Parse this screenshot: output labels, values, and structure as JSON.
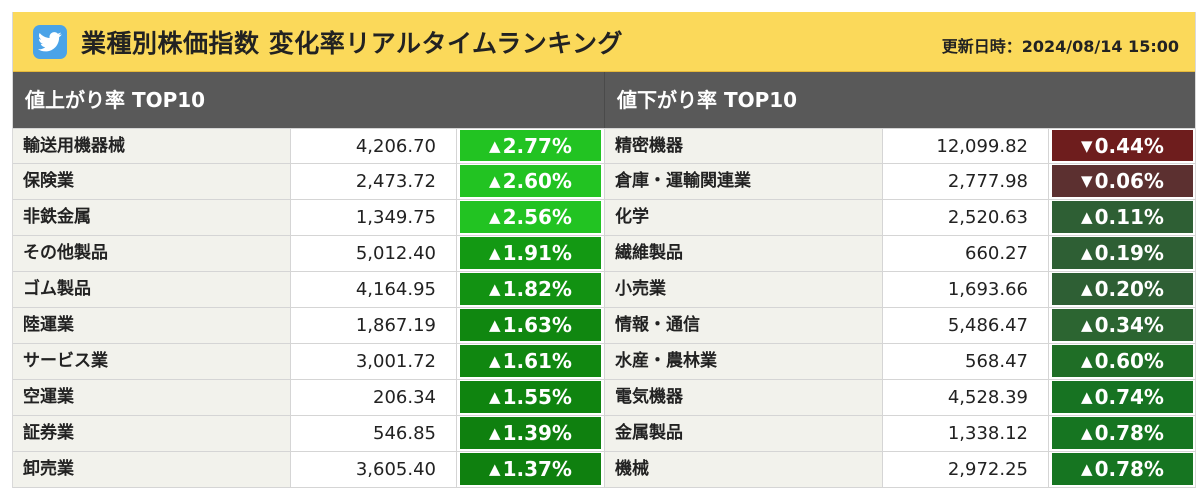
{
  "header": {
    "icon": "twitter-bird-icon",
    "title": "業種別株価指数 変化率リアルタイムランキング",
    "updated": "更新日時：2024/08/14 15:00"
  },
  "colors": {
    "header_bg": "#fbd95a",
    "column_header_bg": "#595959",
    "up_bright": "#22c322",
    "up_mid": "#18a818",
    "up_dark": "#0f7f0f",
    "up_dark_alt": "#2e5f34",
    "down_strong": "#6e1d1d",
    "down_weak": "#5c3030"
  },
  "gainers": {
    "heading": "値上がり率 TOP10",
    "rows": [
      {
        "name": "輸送用機器械",
        "price": "4,206.70",
        "change": "2.77%",
        "dir": "up",
        "color": "#22c322"
      },
      {
        "name": "保険業",
        "price": "2,473.72",
        "change": "2.60%",
        "dir": "up",
        "color": "#22c322"
      },
      {
        "name": "非鉄金属",
        "price": "1,349.75",
        "change": "2.56%",
        "dir": "up",
        "color": "#22c322"
      },
      {
        "name": "その他製品",
        "price": "5,012.40",
        "change": "1.91%",
        "dir": "up",
        "color": "#139913"
      },
      {
        "name": "ゴム製品",
        "price": "4,164.95",
        "change": "1.82%",
        "dir": "up",
        "color": "#129212"
      },
      {
        "name": "陸運業",
        "price": "1,867.19",
        "change": "1.63%",
        "dir": "up",
        "color": "#108710"
      },
      {
        "name": "サービス業",
        "price": "3,001.72",
        "change": "1.61%",
        "dir": "up",
        "color": "#108710"
      },
      {
        "name": "空運業",
        "price": "206.34",
        "change": "1.55%",
        "dir": "up",
        "color": "#0f840f"
      },
      {
        "name": "証券業",
        "price": "546.85",
        "change": "1.39%",
        "dir": "up",
        "color": "#0f800f"
      },
      {
        "name": "卸売業",
        "price": "3,605.40",
        "change": "1.37%",
        "dir": "up",
        "color": "#0f800f"
      }
    ]
  },
  "losers": {
    "heading": "値下がり率 TOP10",
    "rows": [
      {
        "name": "精密機器",
        "price": "12,099.82",
        "change": "0.44%",
        "dir": "down",
        "color": "#6e1d1d"
      },
      {
        "name": "倉庫・運輸関連業",
        "price": "2,777.98",
        "change": "0.06%",
        "dir": "down",
        "color": "#5c3030"
      },
      {
        "name": "化学",
        "price": "2,520.63",
        "change": "0.11%",
        "dir": "up",
        "color": "#2e5f34"
      },
      {
        "name": "繊維製品",
        "price": "660.27",
        "change": "0.19%",
        "dir": "up",
        "color": "#2e5f34"
      },
      {
        "name": "小売業",
        "price": "1,693.66",
        "change": "0.20%",
        "dir": "up",
        "color": "#2e5f34"
      },
      {
        "name": "情報・通信",
        "price": "5,486.47",
        "change": "0.34%",
        "dir": "up",
        "color": "#2c6531"
      },
      {
        "name": "水産・農林業",
        "price": "568.47",
        "change": "0.60%",
        "dir": "up",
        "color": "#1f6e26"
      },
      {
        "name": "電気機器",
        "price": "4,528.39",
        "change": "0.74%",
        "dir": "up",
        "color": "#177322"
      },
      {
        "name": "金属製品",
        "price": "1,338.12",
        "change": "0.78%",
        "dir": "up",
        "color": "#167521"
      },
      {
        "name": "機械",
        "price": "2,972.25",
        "change": "0.78%",
        "dir": "up",
        "color": "#167521"
      }
    ]
  }
}
